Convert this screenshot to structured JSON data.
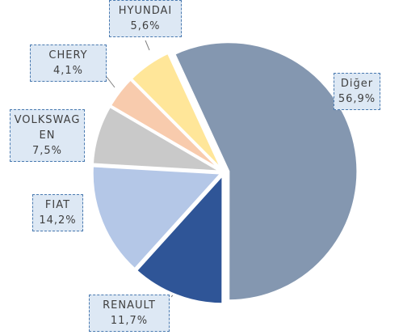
{
  "chart_data": {
    "type": "pie",
    "categories": [
      "Diğer",
      "RENAULT",
      "FIAT",
      "VOLKSWAGEN",
      "CHERY",
      "HYUNDAI"
    ],
    "values": [
      56.9,
      11.7,
      14.2,
      7.5,
      4.1,
      5.6
    ],
    "value_labels": [
      "56,9%",
      "11,7%",
      "14,2%",
      "7,5%",
      "4,1%",
      "5,6%"
    ],
    "colors": [
      "#8497b0",
      "#2f5597",
      "#b4c7e7",
      "#c9c9c9",
      "#f8cbad",
      "#ffe699"
    ]
  }
}
